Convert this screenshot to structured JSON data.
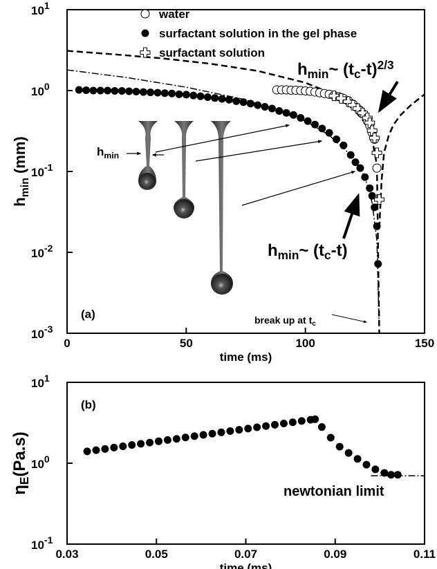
{
  "chart_data": [
    {
      "type": "scatter",
      "panel_label": "(a)",
      "xlabel": "time (ms)",
      "ylabel": [
        {
          "text": "h",
          "script": "normal"
        },
        {
          "text": "min",
          "script": "sub"
        },
        {
          "text": " (mm)",
          "script": "normal"
        }
      ],
      "xlim": [
        0,
        150
      ],
      "xticks": [
        0,
        50,
        100,
        150
      ],
      "ylim": [
        0.001,
        10
      ],
      "ylog": true,
      "yticks": [
        {
          "value": 0.001,
          "label": "10",
          "exponent": "-3"
        },
        {
          "value": 0.01,
          "label": "10",
          "exponent": "-2"
        },
        {
          "value": 0.1,
          "label": "10",
          "exponent": "-1"
        },
        {
          "value": 1,
          "label": "10",
          "exponent": "0"
        },
        {
          "value": 10,
          "label": "10",
          "exponent": "1"
        }
      ],
      "series": [
        {
          "name": "water",
          "marker": "open-circle",
          "color": "#000000",
          "x": [
            88,
            90,
            92,
            94,
            96,
            98,
            100,
            102,
            104,
            106,
            108,
            110,
            112,
            114,
            116,
            118,
            120,
            122,
            124,
            126,
            127,
            128,
            129,
            130
          ],
          "values": [
            1.02,
            1.02,
            1.02,
            1.01,
            1.01,
            1.0,
            0.99,
            0.98,
            0.96,
            0.94,
            0.92,
            0.9,
            0.87,
            0.84,
            0.8,
            0.75,
            0.68,
            0.6,
            0.52,
            0.42,
            0.37,
            0.3,
            0.25,
            0.11
          ]
        },
        {
          "name": "surfactant solution in the gel phase",
          "marker": "filled-circle",
          "color": "#000000",
          "x": [
            5,
            8,
            11,
            14,
            17,
            20,
            23,
            26,
            29,
            32,
            35,
            38,
            41,
            44,
            47,
            50,
            53,
            56,
            59,
            62,
            65,
            68,
            71,
            74,
            77,
            80,
            83,
            86,
            89,
            92,
            95,
            98,
            101,
            104,
            107,
            110,
            113,
            116,
            119,
            121,
            123,
            125,
            127,
            128,
            129,
            130,
            130.5
          ],
          "values": [
            1.02,
            1.01,
            1.0,
            1.0,
            1.0,
            0.99,
            0.99,
            0.98,
            0.97,
            0.96,
            0.95,
            0.94,
            0.93,
            0.92,
            0.9,
            0.89,
            0.87,
            0.85,
            0.83,
            0.81,
            0.79,
            0.77,
            0.74,
            0.72,
            0.69,
            0.66,
            0.63,
            0.6,
            0.56,
            0.53,
            0.5,
            0.46,
            0.42,
            0.38,
            0.34,
            0.3,
            0.25,
            0.21,
            0.16,
            0.13,
            0.11,
            0.085,
            0.062,
            0.05,
            0.036,
            0.021,
            0.0072
          ]
        },
        {
          "name": "surfactant solution",
          "marker": "cross",
          "color": "#000000",
          "x": [
            112,
            115,
            118,
            120,
            122,
            124,
            126,
            127,
            128,
            129,
            130,
            131
          ],
          "values": [
            0.86,
            0.8,
            0.73,
            0.66,
            0.6,
            0.53,
            0.46,
            0.4,
            0.32,
            0.26,
            0.17,
            0.045
          ]
        }
      ],
      "lines": [
        {
          "style": "dashed",
          "x": [
            0,
            20,
            40,
            60,
            80,
            100,
            110,
            120,
            125,
            128,
            130,
            131
          ],
          "values": [
            3.1,
            2.8,
            2.5,
            2.15,
            1.75,
            1.25,
            0.95,
            0.6,
            0.4,
            0.25,
            0.12,
            0.001
          ]
        },
        {
          "style": "dashed",
          "x": [
            131,
            132,
            133,
            135,
            137,
            140,
            144,
            150
          ],
          "values": [
            0.02,
            0.08,
            0.17,
            0.28,
            0.38,
            0.5,
            0.65,
            0.9
          ]
        },
        {
          "style": "dash-dot",
          "x": [
            0,
            25,
            50,
            75,
            100,
            110,
            120,
            125,
            128,
            130,
            130.9
          ],
          "values": [
            1.8,
            1.45,
            1.1,
            0.77,
            0.42,
            0.28,
            0.15,
            0.085,
            0.041,
            0.014,
            0.0014
          ]
        }
      ],
      "annotations": {
        "power_two_thirds": [
          {
            "text": "h",
            "script": "normal"
          },
          {
            "text": "min",
            "script": "sub"
          },
          {
            "text": "~ (t",
            "script": "normal"
          },
          {
            "text": "c",
            "script": "sub"
          },
          {
            "text": "-t)",
            "script": "normal"
          },
          {
            "text": "2/3",
            "script": "sup"
          }
        ],
        "power_linear": [
          {
            "text": "h",
            "script": "normal"
          },
          {
            "text": "min",
            "script": "sub"
          },
          {
            "text": "~ (t",
            "script": "normal"
          },
          {
            "text": "c",
            "script": "sub"
          },
          {
            "text": "-t)",
            "script": "normal"
          }
        ],
        "break_up": [
          {
            "text": "break up at t",
            "script": "normal"
          },
          {
            "text": "c",
            "script": "sub"
          }
        ],
        "drop_hmin": [
          {
            "text": "h",
            "script": "normal"
          },
          {
            "text": "min",
            "script": "sub"
          }
        ]
      }
    },
    {
      "type": "scatter",
      "panel_label": "(b)",
      "xlabel": "time (ms)",
      "ylabel": [
        {
          "text": "η",
          "script": "normal"
        },
        {
          "text": "E",
          "script": "sub"
        },
        {
          "text": "(Pa.s)",
          "script": "normal"
        }
      ],
      "xlim": [
        0.03,
        0.11
      ],
      "xticks": [
        0.03,
        0.05,
        0.07,
        0.09,
        0.11
      ],
      "ylim": [
        0.1,
        10
      ],
      "ylog": true,
      "yticks": [
        {
          "value": 0.1,
          "label": "10",
          "exponent": "-1"
        },
        {
          "value": 1,
          "label": "10",
          "exponent": "0"
        },
        {
          "value": 10,
          "label": "10",
          "exponent": "1"
        }
      ],
      "series": [
        {
          "marker": "filled-circle",
          "color": "#000000",
          "x": [
            0.0345,
            0.0365,
            0.0385,
            0.0405,
            0.0425,
            0.0445,
            0.0465,
            0.0485,
            0.0505,
            0.0525,
            0.0545,
            0.0565,
            0.0585,
            0.0605,
            0.0625,
            0.0645,
            0.0665,
            0.0685,
            0.0705,
            0.0725,
            0.0745,
            0.0765,
            0.0785,
            0.0805,
            0.0825,
            0.0845,
            0.0855,
            0.087,
            0.089,
            0.091,
            0.093,
            0.095,
            0.097,
            0.099,
            0.101,
            0.1025,
            0.104
          ],
          "values": [
            1.4,
            1.45,
            1.5,
            1.56,
            1.62,
            1.68,
            1.74,
            1.8,
            1.87,
            1.94,
            2.0,
            2.08,
            2.16,
            2.24,
            2.32,
            2.41,
            2.5,
            2.59,
            2.68,
            2.78,
            2.88,
            2.99,
            3.1,
            3.21,
            3.33,
            3.45,
            3.5,
            2.8,
            2.07,
            1.6,
            1.34,
            1.13,
            0.96,
            0.84,
            0.76,
            0.72,
            0.72
          ]
        }
      ],
      "lines": [
        {
          "style": "dash-dot",
          "x": [
            0.098,
            0.11
          ],
          "values": [
            0.7,
            0.7
          ]
        }
      ],
      "annotations": {
        "newtonian": [
          {
            "text": "newtonian limit",
            "script": "normal"
          }
        ]
      }
    }
  ]
}
